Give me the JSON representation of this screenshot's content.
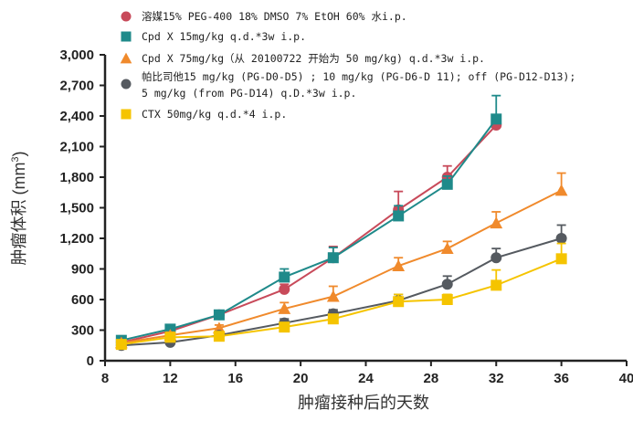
{
  "chart_data": {
    "type": "line",
    "xlabel": "肿瘤接种后的天数",
    "ylabel": "肿瘤体积 (mm",
    "ylabel_sup": "3",
    "ylabel_close": ")",
    "xlim": [
      8,
      40
    ],
    "ylim": [
      0,
      3000
    ],
    "xticks": [
      8,
      12,
      16,
      20,
      24,
      28,
      32,
      36,
      40
    ],
    "yticks": [
      0,
      300,
      600,
      900,
      1200,
      1500,
      1800,
      2100,
      2400,
      2700,
      3000
    ],
    "xtick_labels": [
      "8",
      "12",
      "16",
      "20",
      "24",
      "28",
      "32",
      "36",
      "40"
    ],
    "ytick_labels": [
      "0",
      "300",
      "600",
      "900",
      "1,200",
      "1,500",
      "1,800",
      "2,100",
      "2,400",
      "2,700",
      "3,000"
    ],
    "grid": false,
    "legend_position": "top",
    "series": [
      {
        "name": "溶媒15% PEG-400 18% DMSO 7% EtOH 60% 水i.p.",
        "color": "#c84a5a",
        "marker": "circle",
        "x": [
          9,
          12,
          15,
          19,
          22,
          26,
          29,
          32
        ],
        "y": [
          180,
          290,
          450,
          700,
          1010,
          1480,
          1800,
          2310
        ],
        "err": [
          20,
          30,
          30,
          50,
          110,
          180,
          110,
          0
        ]
      },
      {
        "name": "Cpd X 15mg/kg q.d.*3w i.p.",
        "color": "#1f8a8a",
        "marker": "square",
        "x": [
          9,
          12,
          15,
          19,
          22,
          26,
          29,
          32
        ],
        "y": [
          200,
          310,
          450,
          820,
          1010,
          1420,
          1730,
          2370
        ],
        "err": [
          20,
          30,
          30,
          80,
          100,
          100,
          80,
          230
        ]
      },
      {
        "name": "Cpd X 75mg/kg（从 20100722 开始为 50 mg/kg) q.d.*3w i.p.",
        "color": "#f08a2c",
        "marker": "triangle",
        "x": [
          9,
          12,
          15,
          19,
          22,
          26,
          29,
          32,
          36
        ],
        "y": [
          175,
          250,
          320,
          510,
          630,
          930,
          1100,
          1350,
          1670
        ],
        "err": [
          20,
          30,
          30,
          60,
          100,
          80,
          70,
          110,
          170
        ]
      },
      {
        "name": "帕比司他15 mg/kg (PG-D0-D5) ; 10 mg/kg (PG-D6-D 11); off (PG-D12-D13); 5 mg/kg (from PG-D14) q.D.*3w i.p.",
        "color": "#555a60",
        "marker": "circle",
        "x": [
          9,
          12,
          15,
          19,
          22,
          26,
          29,
          32,
          36
        ],
        "y": [
          150,
          180,
          250,
          370,
          460,
          590,
          750,
          1010,
          1200
        ],
        "err": [
          15,
          20,
          20,
          40,
          40,
          60,
          80,
          90,
          130
        ]
      },
      {
        "name": "CTX 50mg/kg q.d.*4 i.p.",
        "color": "#f5c400",
        "marker": "square",
        "x": [
          9,
          12,
          15,
          19,
          22,
          26,
          29,
          32,
          36
        ],
        "y": [
          160,
          230,
          240,
          330,
          410,
          580,
          600,
          740,
          1000
        ],
        "err": [
          15,
          20,
          20,
          30,
          40,
          70,
          50,
          150,
          150
        ]
      }
    ]
  }
}
